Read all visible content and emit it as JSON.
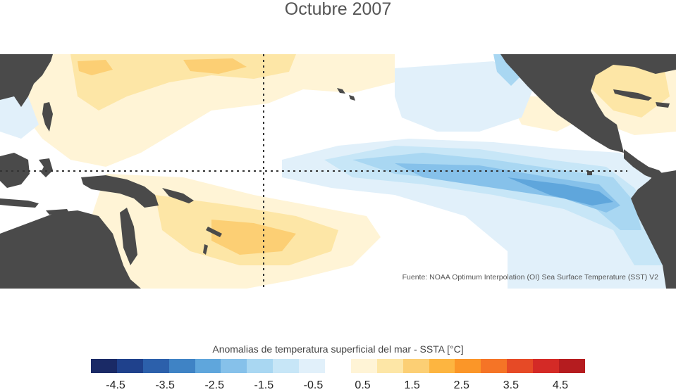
{
  "title": "Octubre 2007",
  "source": "Fuente: NOAA Optimum Interpolation (OI) Sea Surface Temperature (SST) V2",
  "legend": {
    "title": "Anomalias de temperatura superficial del mar - SSTA  [°C]",
    "colors": [
      "#1a2a66",
      "#1f418c",
      "#2c60ab",
      "#3f83c5",
      "#5fa6dc",
      "#86c1ea",
      "#a9d7f2",
      "#c7e6f7",
      "#e1f0fa",
      "#ffffff",
      "#fff4d6",
      "#fde6a6",
      "#fccf74",
      "#fdb540",
      "#fb9628",
      "#f57426",
      "#e64a26",
      "#d42a26",
      "#b51c1f"
    ],
    "ticks": [
      "-4.5",
      "-3.5",
      "-2.5",
      "-1.5",
      "-0.5",
      "0.5",
      "1.5",
      "2.5",
      "3.5",
      "4.5"
    ],
    "tick_values": [
      -4.5,
      -3.5,
      -2.5,
      -1.5,
      -0.5,
      0.5,
      1.5,
      2.5,
      3.5,
      4.5
    ],
    "min": -5,
    "max": 5
  },
  "map_colors": {
    "land": "#4a4a4a",
    "ocean_neutral": "#ffffff",
    "warm_light": "#fff4d6",
    "warm_mid": "#fde6a6",
    "warm_strong": "#fccf74",
    "cool_light": "#e1f0fa",
    "cool_mid": "#c7e6f7",
    "cool_strong": "#86c1ea",
    "cool_deep": "#5fa6dc",
    "guide_line": "#333333"
  }
}
